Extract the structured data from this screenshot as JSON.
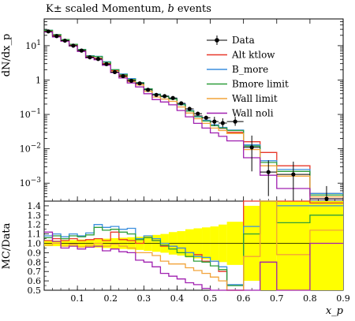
{
  "chart_data": [
    {
      "type": "line",
      "title": "K± scaled Momentum, b events",
      "xlabel": "",
      "ylabel": "dN/dx_p",
      "yscale": "log",
      "xlim": [
        0,
        0.9
      ],
      "ylim": [
        0.0003,
        60
      ],
      "y_tick_labels": [
        "10^1",
        "1",
        "10^-1",
        "10^-2",
        "10^-3"
      ],
      "legend_position": "top-right",
      "bin_edges": [
        0.0,
        0.025,
        0.05,
        0.075,
        0.1,
        0.125,
        0.15,
        0.175,
        0.2,
        0.225,
        0.25,
        0.275,
        0.3,
        0.325,
        0.35,
        0.375,
        0.4,
        0.425,
        0.45,
        0.475,
        0.5,
        0.525,
        0.55,
        0.6,
        0.65,
        0.7,
        0.8,
        0.9
      ],
      "data": {
        "name": "Data",
        "color": "#000000",
        "x": [
          0.0125,
          0.0375,
          0.0625,
          0.0875,
          0.1125,
          0.1375,
          0.1625,
          0.1875,
          0.2125,
          0.2375,
          0.2625,
          0.2875,
          0.3125,
          0.3375,
          0.3625,
          0.3875,
          0.4125,
          0.4375,
          0.4625,
          0.4875,
          0.5125,
          0.5375,
          0.575,
          0.625,
          0.675,
          0.75,
          0.85
        ],
        "y": [
          26,
          19,
          14,
          10,
          7.2,
          4.6,
          4.1,
          2.9,
          1.7,
          1.3,
          0.95,
          0.8,
          0.52,
          0.37,
          0.34,
          0.3,
          0.21,
          0.145,
          0.105,
          0.08,
          0.062,
          0.056,
          0.062,
          0.011,
          0.0021,
          0.0018,
          0.00035
        ]
      },
      "series": [
        {
          "name": "Alt ktlow",
          "color": "#e8382a",
          "y": [
            27,
            20,
            14.5,
            10.5,
            7.4,
            4.8,
            4.3,
            3.0,
            1.9,
            1.35,
            0.98,
            0.8,
            0.55,
            0.38,
            0.33,
            0.29,
            0.2,
            0.13,
            0.092,
            0.065,
            0.05,
            0.039,
            0.03,
            0.016,
            0.0078,
            0.0032,
            0.0005
          ],
          "ratio": [
            1.03,
            1.05,
            1.03,
            1.05,
            1.03,
            1.04,
            1.05,
            1.03,
            1.12,
            1.04,
            1.03,
            1.0,
            1.06,
            1.03,
            0.97,
            0.97,
            0.95,
            0.9,
            0.88,
            0.81,
            0.81,
            0.7,
            0.48,
            1.45,
            3.7,
            1.78,
            1.43
          ]
        },
        {
          "name": "B_more",
          "color": "#3b8fde",
          "y": [
            28,
            21,
            15,
            11,
            7.8,
            5.1,
            4.9,
            3.4,
            2.0,
            1.5,
            1.1,
            0.84,
            0.56,
            0.39,
            0.34,
            0.29,
            0.2,
            0.13,
            0.09,
            0.068,
            0.05,
            0.042,
            0.035,
            0.013,
            0.0045,
            0.0025,
            0.0005
          ],
          "ratio": [
            1.08,
            1.1,
            1.07,
            1.1,
            1.08,
            1.11,
            1.2,
            1.17,
            1.18,
            1.15,
            1.16,
            1.05,
            1.08,
            1.05,
            1.0,
            0.97,
            0.95,
            0.9,
            0.86,
            0.85,
            0.81,
            0.75,
            0.56,
            1.18,
            2.1,
            1.4,
            1.4
          ]
        },
        {
          "name": "Bmore limit",
          "color": "#2e9e3a",
          "y": [
            28,
            21,
            15,
            11,
            7.7,
            5.0,
            4.8,
            3.3,
            2.0,
            1.45,
            1.05,
            0.83,
            0.55,
            0.38,
            0.33,
            0.28,
            0.19,
            0.125,
            0.085,
            0.064,
            0.047,
            0.04,
            0.034,
            0.012,
            0.004,
            0.0022,
            0.00045
          ],
          "ratio": [
            1.06,
            1.08,
            1.05,
            1.08,
            1.07,
            1.09,
            1.17,
            1.14,
            1.15,
            1.12,
            1.1,
            1.04,
            1.06,
            1.03,
            0.98,
            0.94,
            0.9,
            0.86,
            0.81,
            0.8,
            0.76,
            0.72,
            0.55,
            1.1,
            1.9,
            1.22,
            1.3
          ]
        },
        {
          "name": "Wall limit",
          "color": "#f2a33a",
          "y": [
            26,
            19,
            13.8,
            10,
            7.0,
            4.6,
            4.1,
            2.85,
            1.75,
            1.25,
            0.9,
            0.72,
            0.47,
            0.32,
            0.28,
            0.24,
            0.165,
            0.11,
            0.075,
            0.055,
            0.04,
            0.034,
            0.028,
            0.0095,
            0.0032,
            0.0016,
            0.0004
          ],
          "ratio": [
            0.98,
            1.0,
            0.97,
            0.99,
            0.96,
            0.98,
            1.0,
            0.97,
            0.99,
            0.97,
            0.95,
            0.9,
            0.9,
            0.87,
            0.81,
            0.78,
            0.78,
            0.74,
            0.71,
            0.68,
            0.64,
            0.6,
            0.45,
            0.86,
            1.55,
            0.88,
            1.14
          ]
        },
        {
          "name": "Wall noli",
          "color": "#a020b0",
          "y": [
            25,
            18,
            13.5,
            9.8,
            6.8,
            4.4,
            3.9,
            2.7,
            1.65,
            1.15,
            0.82,
            0.63,
            0.4,
            0.27,
            0.23,
            0.19,
            0.13,
            0.085,
            0.055,
            0.04,
            0.029,
            0.023,
            0.017,
            0.0055,
            0.0017,
            0.0007,
            0.00035
          ],
          "ratio": [
            1.12,
            1.02,
            0.95,
            0.97,
            0.94,
            0.96,
            0.97,
            0.92,
            0.94,
            0.91,
            0.9,
            0.82,
            0.8,
            0.75,
            0.68,
            0.65,
            0.62,
            0.58,
            0.56,
            0.52,
            0.5,
            0.45,
            0.3,
            0.48,
            0.8,
            0.4,
            1.0
          ]
        }
      ]
    },
    {
      "type": "line",
      "xlabel": "x_p",
      "ylabel": "MC/Data",
      "xlim": [
        0,
        0.9
      ],
      "ylim": [
        0.5,
        1.45
      ],
      "x_ticks": [
        0.1,
        0.2,
        0.3,
        0.4,
        0.5,
        0.6,
        0.7,
        0.8,
        0.9
      ],
      "y_ticks": [
        0.5,
        0.6,
        0.7,
        0.8,
        0.9,
        1.0,
        1.1,
        1.2,
        1.3,
        1.4
      ],
      "reference_line": 1.0,
      "uncertainty_band": {
        "color": "#ffff00",
        "half_width": [
          0.03,
          0.03,
          0.035,
          0.035,
          0.04,
          0.04,
          0.045,
          0.05,
          0.055,
          0.06,
          0.065,
          0.07,
          0.08,
          0.09,
          0.1,
          0.12,
          0.13,
          0.15,
          0.16,
          0.17,
          0.18,
          0.2,
          0.23,
          0.4,
          0.6,
          0.8,
          0.8
        ]
      }
    }
  ]
}
